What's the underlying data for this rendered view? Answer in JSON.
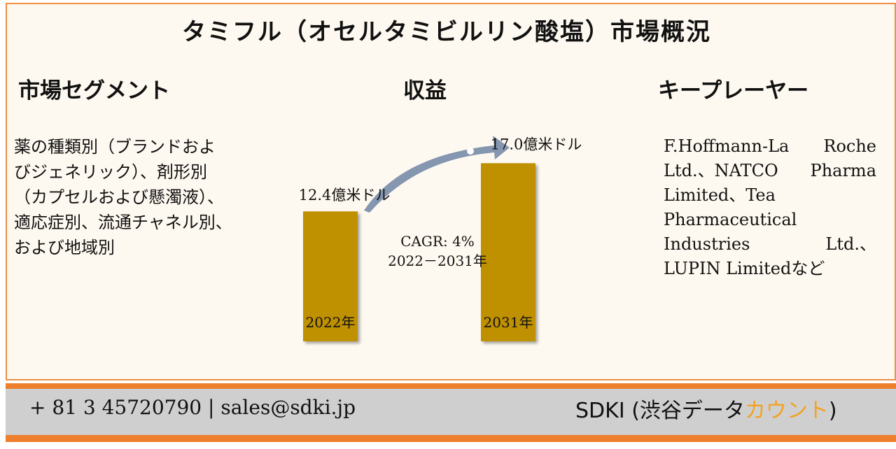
{
  "title": "タミフル（オセルタミビルリン酸塩）市場概況",
  "sections": {
    "segments": {
      "heading": "市場セグメント",
      "lines": [
        "薬の種類別（ブランドおよ",
        "びジェネリック）、剤形別",
        "（カプセルおよび懸濁液）、",
        "適応症別、流通チャネル別、",
        "および地域別"
      ]
    },
    "revenue": {
      "heading": "収益"
    },
    "key_players": {
      "heading": "キープレーヤー",
      "lines": [
        [
          "F.Hoffmann-La",
          "Roche"
        ],
        [
          "Ltd.、NATCO",
          "Pharma"
        ],
        [
          "Limited、Tea"
        ],
        [
          "Pharmaceutical"
        ],
        [
          "Industries",
          "Ltd.、"
        ],
        [
          "LUPIN Limitedなど"
        ]
      ]
    }
  },
  "chart_data": {
    "type": "bar",
    "categories": [
      "2022年",
      "2031年"
    ],
    "values": [
      12.4,
      17.0
    ],
    "value_labels": [
      "12.4億米ドル",
      "17.0億米ドル"
    ],
    "bar_color": "#bf9000",
    "cagr_lines": [
      "CAGR: 4%",
      "2022－2031年"
    ],
    "arrow_color": "#8496b0"
  },
  "footer": {
    "contact": "+ 81 3 45720790 | sales@sdki.jp",
    "brand_main": "SDKI (渋谷データ",
    "brand_accent": "カウント",
    "brand_end": ")"
  },
  "colors": {
    "border": "#ed7f2d",
    "footer_bg": "#cfcfcf",
    "accent": "#f3a221"
  }
}
